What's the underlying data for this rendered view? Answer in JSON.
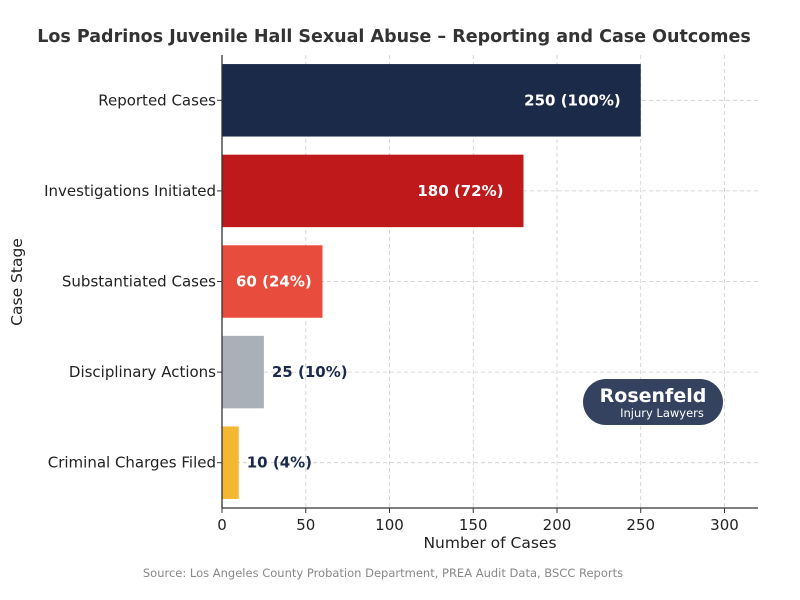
{
  "chart_data": {
    "type": "bar",
    "orientation": "horizontal",
    "title": "Los Padrinos Juvenile Hall Sexual Abuse – Reporting and Case Outcomes",
    "xlabel": "Number of Cases",
    "ylabel": "Case Stage",
    "xlim": [
      0,
      320
    ],
    "xticks": [
      0,
      50,
      100,
      150,
      200,
      250,
      300
    ],
    "grid": true,
    "categories": [
      "Reported Cases",
      "Investigations Initiated",
      "Substantiated Cases",
      "Disciplinary Actions",
      "Criminal Charges Filed"
    ],
    "values": [
      250,
      180,
      60,
      25,
      10
    ],
    "data_labels": [
      "250 (100%)",
      "180 (72%)",
      "60 (24%)",
      "25 (10%)",
      "10 (4%)"
    ],
    "colors": [
      "#1c2a4a",
      "#c0191c",
      "#e84c3d",
      "#aab0b8",
      "#f4b731"
    ],
    "source": "Source: Los Angeles County Probation Department, PREA Audit Data, BSCC Reports"
  },
  "logo": {
    "name": "Rosenfeld",
    "tagline": "Injury Lawyers",
    "color": "#34425f"
  }
}
